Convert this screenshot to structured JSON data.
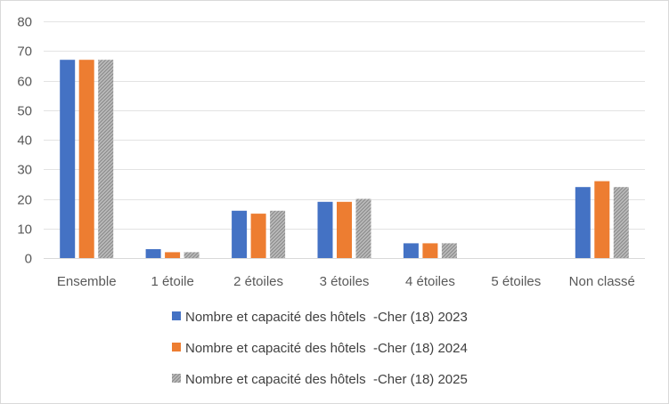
{
  "chart_data": {
    "type": "bar",
    "title": "",
    "xlabel": "",
    "ylabel": "",
    "ylim": [
      0,
      80
    ],
    "yticks": [
      0,
      10,
      20,
      30,
      40,
      50,
      60,
      70,
      80
    ],
    "grid": true,
    "legend_position": "bottom",
    "categories": [
      "Ensemble",
      "1 étoile",
      "2 étoiles",
      "3 étoiles",
      "4 étoiles",
      "5 étoiles",
      "Non classé"
    ],
    "series": [
      {
        "name": "Nombre et capacité des hôtels  -Cher (18) 2023",
        "color": "#4472c4",
        "pattern": "solid",
        "values": [
          67,
          3,
          16,
          19,
          5,
          0,
          24
        ]
      },
      {
        "name": "Nombre et capacité des hôtels  -Cher (18) 2024",
        "color": "#ed7d31",
        "pattern": "solid",
        "values": [
          67,
          2,
          15,
          19,
          5,
          0,
          26
        ]
      },
      {
        "name": "Nombre et capacité des hôtels  -Cher (18) 2025",
        "color": "#a5a5a5",
        "pattern": "hatched",
        "values": [
          67,
          2,
          16,
          20,
          5,
          0,
          24
        ]
      }
    ]
  }
}
